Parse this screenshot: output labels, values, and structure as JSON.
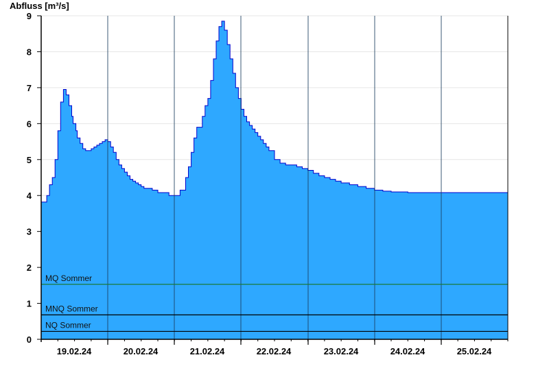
{
  "chart_data": {
    "type": "area",
    "ylabel": "Abfluss [m³/s]",
    "xlabel": "",
    "ylim": [
      0,
      9
    ],
    "yticks": [
      "0",
      "1",
      "2",
      "3",
      "4",
      "5",
      "6",
      "7",
      "8",
      "9"
    ],
    "xlim": [
      "18.02.24 12:00",
      "25.02.24 24:00"
    ],
    "xticks": [
      "19.02.24",
      "20.02.24",
      "21.02.24",
      "22.02.24",
      "23.02.24",
      "24.02.24",
      "25.02.24"
    ],
    "grid": "vertical day lines, horizontal light gridlines",
    "area_color": "#2ea8ff",
    "line_color": "#0000cc",
    "reference_lines": [
      {
        "label": "MQ Sommer",
        "value": 1.53,
        "color": "#1a7a3a"
      },
      {
        "label": "MNQ Sommer",
        "value": 0.68,
        "color": "#000000"
      },
      {
        "label": "NQ Sommer",
        "value": 0.22,
        "color": "#000000"
      }
    ],
    "series": [
      {
        "x_hours": [
          0,
          3,
          4,
          6,
          8,
          10,
          12,
          14,
          16,
          18,
          20,
          22,
          23,
          25,
          26,
          28,
          30,
          32,
          34,
          36,
          38,
          40,
          42,
          44,
          46,
          48,
          50,
          52,
          54,
          56,
          58,
          60,
          62,
          64,
          66,
          68,
          70,
          72,
          74,
          76,
          78,
          80,
          84,
          88,
          92,
          96,
          100,
          104,
          106,
          108,
          110,
          112,
          116,
          118,
          120,
          122,
          124,
          126,
          128,
          130,
          132,
          134,
          136,
          138,
          140,
          142,
          144,
          146,
          148,
          150,
          152,
          154,
          156,
          158,
          160,
          162,
          164,
          168,
          172,
          176,
          180,
          184,
          188,
          192,
          196,
          200,
          204,
          208,
          212,
          216,
          222,
          228,
          234,
          240,
          246,
          252,
          258,
          264,
          270,
          276,
          282,
          288,
          294,
          300,
          306,
          312,
          318,
          324,
          330,
          336
        ],
        "values": [
          3.82,
          3.82,
          4.0,
          4.3,
          4.5,
          5.0,
          5.8,
          6.6,
          6.95,
          6.8,
          6.5,
          6.2,
          6.0,
          5.8,
          5.6,
          5.45,
          5.3,
          5.25,
          5.25,
          5.3,
          5.35,
          5.4,
          5.45,
          5.5,
          5.55,
          5.5,
          5.35,
          5.2,
          5.0,
          4.85,
          4.75,
          4.65,
          4.55,
          4.45,
          4.4,
          4.35,
          4.3,
          4.25,
          4.2,
          4.2,
          4.2,
          4.15,
          4.08,
          4.08,
          4.0,
          4.0,
          4.15,
          4.5,
          4.8,
          5.2,
          5.6,
          5.9,
          6.2,
          6.5,
          6.7,
          7.2,
          7.8,
          8.3,
          8.7,
          8.85,
          8.6,
          8.2,
          7.8,
          7.4,
          7.0,
          6.7,
          6.4,
          6.2,
          6.05,
          5.95,
          5.85,
          5.75,
          5.65,
          5.55,
          5.45,
          5.35,
          5.25,
          5.0,
          4.9,
          4.85,
          4.85,
          4.8,
          4.75,
          4.7,
          4.62,
          4.55,
          4.5,
          4.45,
          4.4,
          4.35,
          4.3,
          4.25,
          4.2,
          4.15,
          4.12,
          4.1,
          4.1,
          4.08,
          4.08,
          4.08,
          4.08,
          4.08,
          4.08,
          4.08,
          4.08,
          4.08,
          4.08,
          4.08,
          4.08,
          4.08
        ]
      }
    ]
  }
}
